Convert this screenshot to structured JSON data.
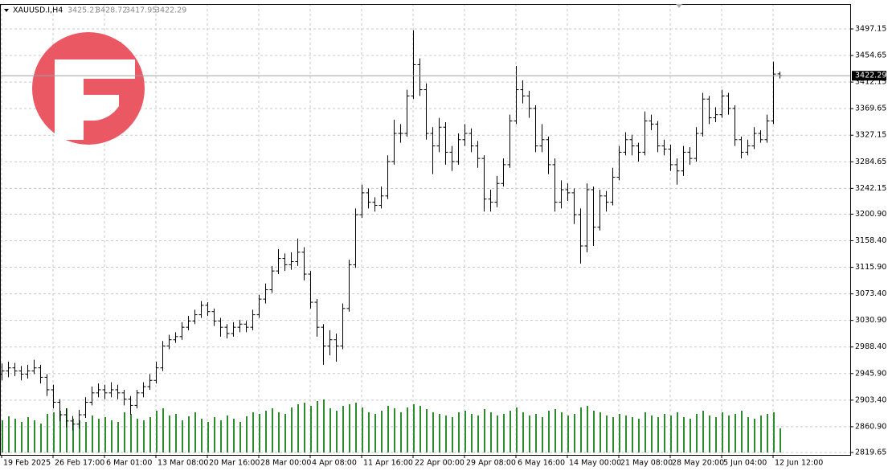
{
  "chart_data": {
    "type": "ohlc",
    "symbol": "XAUUSD.I,H4",
    "color": "#000000",
    "volume_color": "#2e8b2e",
    "grid": true,
    "open": [
      2945,
      2950,
      2955,
      2950,
      2945,
      2950,
      2955,
      2940,
      2920,
      2900,
      2880,
      2870,
      2865,
      2880,
      2900,
      2915,
      2920,
      2915,
      2920,
      2915,
      2905,
      2895,
      2915,
      2925,
      2935,
      2955,
      2990,
      3000,
      3005,
      3020,
      3030,
      3040,
      3055,
      3045,
      3030,
      3020,
      3010,
      3020,
      3025,
      3020,
      3040,
      3065,
      3080,
      3110,
      3130,
      3120,
      3125,
      3140,
      3105,
      3060,
      3020,
      2990,
      3000,
      2990,
      3050,
      3120,
      3200,
      3235,
      3220,
      3215,
      3230,
      3285,
      3330,
      3330,
      3390,
      3440,
      3400,
      3330,
      3310,
      3340,
      3300,
      3285,
      3320,
      3330,
      3310,
      3290,
      3225,
      3220,
      3250,
      3280,
      3350,
      3400,
      3390,
      3370,
      3310,
      3320,
      3280,
      3220,
      3240,
      3235,
      3200,
      3150,
      3240,
      3180,
      3230,
      3220,
      3260,
      3300,
      3320,
      3310,
      3300,
      3350,
      3345,
      3310,
      3305,
      3280,
      3270,
      3300,
      3290,
      3330,
      3385,
      3355,
      3360,
      3390,
      3370,
      3320,
      3300,
      3310,
      3330,
      3320,
      3350,
      3425.21
    ],
    "high": [
      2962,
      2965,
      2963,
      2958,
      2960,
      2968,
      2960,
      2945,
      2928,
      2905,
      2890,
      2878,
      2888,
      2908,
      2925,
      2930,
      2928,
      2932,
      2928,
      2920,
      2910,
      2920,
      2932,
      2945,
      2965,
      2998,
      3008,
      3012,
      3028,
      3038,
      3048,
      3062,
      3060,
      3050,
      3035,
      3025,
      3028,
      3032,
      3030,
      3048,
      3072,
      3090,
      3118,
      3145,
      3138,
      3140,
      3162,
      3148,
      3110,
      3065,
      3025,
      3015,
      3010,
      3058,
      3128,
      3210,
      3248,
      3242,
      3228,
      3245,
      3295,
      3352,
      3345,
      3400,
      3495,
      3450,
      3410,
      3340,
      3355,
      3348,
      3310,
      3330,
      3345,
      3338,
      3318,
      3295,
      3240,
      3262,
      3290,
      3360,
      3438,
      3415,
      3398,
      3375,
      3345,
      3325,
      3290,
      3255,
      3250,
      3242,
      3210,
      3250,
      3245,
      3240,
      3238,
      3275,
      3310,
      3332,
      3328,
      3315,
      3365,
      3360,
      3350,
      3320,
      3312,
      3290,
      3310,
      3308,
      3340,
      3395,
      3390,
      3372,
      3400,
      3395,
      3375,
      3325,
      3320,
      3340,
      3335,
      3360,
      3445,
      3428.72
    ],
    "low": [
      2935,
      2940,
      2942,
      2935,
      2938,
      2945,
      2930,
      2910,
      2890,
      2870,
      2860,
      2855,
      2858,
      2875,
      2895,
      2908,
      2905,
      2908,
      2905,
      2895,
      2880,
      2890,
      2908,
      2920,
      2930,
      2950,
      2985,
      2995,
      3000,
      3015,
      3025,
      3035,
      3038,
      3022,
      3005,
      3002,
      3005,
      3012,
      3012,
      3015,
      3035,
      3058,
      3075,
      3105,
      3110,
      3112,
      3118,
      3095,
      3050,
      3005,
      2960,
      2975,
      2965,
      2985,
      3045,
      3115,
      3195,
      3210,
      3205,
      3210,
      3225,
      3280,
      3315,
      3325,
      3385,
      3390,
      3320,
      3265,
      3300,
      3280,
      3270,
      3280,
      3310,
      3300,
      3275,
      3205,
      3205,
      3212,
      3245,
      3275,
      3345,
      3378,
      3355,
      3300,
      3300,
      3265,
      3205,
      3210,
      3222,
      3185,
      3122,
      3140,
      3150,
      3175,
      3205,
      3215,
      3255,
      3295,
      3295,
      3285,
      3295,
      3335,
      3300,
      3295,
      3270,
      3248,
      3262,
      3280,
      3285,
      3325,
      3345,
      3348,
      3355,
      3360,
      3310,
      3290,
      3295,
      3305,
      3315,
      3315,
      3345,
      3417.95
    ],
    "close": [
      2950,
      2955,
      2950,
      2945,
      2950,
      2955,
      2940,
      2920,
      2900,
      2880,
      2870,
      2865,
      2880,
      2900,
      2915,
      2920,
      2915,
      2920,
      2915,
      2905,
      2895,
      2915,
      2925,
      2935,
      2955,
      2990,
      3000,
      3005,
      3020,
      3030,
      3040,
      3055,
      3045,
      3030,
      3020,
      3010,
      3020,
      3025,
      3020,
      3040,
      3065,
      3080,
      3110,
      3130,
      3120,
      3125,
      3140,
      3105,
      3060,
      3020,
      2990,
      3000,
      2990,
      3050,
      3120,
      3200,
      3235,
      3220,
      3215,
      3230,
      3285,
      3330,
      3330,
      3390,
      3440,
      3400,
      3330,
      3310,
      3340,
      3300,
      3285,
      3320,
      3330,
      3310,
      3290,
      3225,
      3220,
      3250,
      3280,
      3350,
      3400,
      3390,
      3370,
      3310,
      3320,
      3280,
      3220,
      3240,
      3235,
      3200,
      3150,
      3240,
      3180,
      3230,
      3220,
      3260,
      3300,
      3320,
      3310,
      3300,
      3350,
      3345,
      3310,
      3305,
      3280,
      3270,
      3300,
      3290,
      3330,
      3385,
      3355,
      3360,
      3390,
      3370,
      3320,
      3300,
      3310,
      3330,
      3320,
      3350,
      3425,
      3422.29
    ],
    "volume": [
      40,
      45,
      42,
      38,
      44,
      40,
      36,
      48,
      50,
      52,
      55,
      42,
      40,
      38,
      46,
      42,
      44,
      40,
      38,
      50,
      48,
      42,
      40,
      44,
      52,
      55,
      46,
      48,
      40,
      45,
      50,
      42,
      38,
      44,
      40,
      46,
      42,
      38,
      45,
      50,
      48,
      52,
      55,
      50,
      48,
      56,
      60,
      62,
      58,
      64,
      66,
      55,
      52,
      58,
      60,
      62,
      56,
      50,
      48,
      52,
      58,
      55,
      50,
      56,
      60,
      58,
      54,
      50,
      48,
      46,
      44,
      50,
      52,
      48,
      46,
      54,
      50,
      46,
      48,
      52,
      56,
      50,
      46,
      48,
      44,
      52,
      54,
      50,
      46,
      48,
      56,
      58,
      52,
      50,
      46,
      44,
      48,
      46,
      44,
      42,
      50,
      46,
      44,
      48,
      46,
      50,
      44,
      42,
      48,
      52,
      46,
      44,
      50,
      46,
      48,
      52,
      44,
      42,
      46,
      48,
      50,
      30
    ],
    "volume_ylim": [
      0,
      100
    ],
    "xlim": [
      -0.25,
      132
    ],
    "xticks": [
      {
        "value": 0,
        "label": "19 Feb 2025"
      },
      {
        "value": 8,
        "label": "26 Feb 17:00"
      },
      {
        "value": 16,
        "label": "6 Mar 01:00"
      },
      {
        "value": 24,
        "label": "13 Mar 08:00"
      },
      {
        "value": 32,
        "label": "20 Mar 16:00"
      },
      {
        "value": 40,
        "label": "28 Mar 00:00"
      },
      {
        "value": 48,
        "label": "4 Apr 08:00"
      },
      {
        "value": 56,
        "label": "11 Apr 16:00"
      },
      {
        "value": 64,
        "label": "22 Apr 00:00"
      },
      {
        "value": 72,
        "label": "29 Apr 08:00"
      },
      {
        "value": 80,
        "label": "6 May 16:00"
      },
      {
        "value": 88,
        "label": "14 May 00:00"
      },
      {
        "value": 96,
        "label": "21 May 08:00"
      },
      {
        "value": 104,
        "label": "28 May 20:00"
      },
      {
        "value": 112,
        "label": "5 Jun 04:00"
      },
      {
        "value": 120,
        "label": "12 Jun 12:00"
      }
    ],
    "ylim": [
      2815.8,
      3537.0
    ],
    "yticks": [
      2819.65,
      {
        "value": 2860.9,
        "label": "2860.90"
      },
      {
        "value": 2903.4,
        "label": "2903.40"
      },
      {
        "value": 2945.9,
        "label": "2945.90"
      },
      {
        "value": 2988.4,
        "label": "2988.40"
      },
      {
        "value": 3030.9,
        "label": "3030.90"
      },
      {
        "value": 3073.4,
        "label": "3073.40"
      },
      {
        "value": 3115.9,
        "label": "3115.90"
      },
      {
        "value": 3158.4,
        "label": "3158.40"
      },
      {
        "value": 3200.9,
        "label": "3200.90"
      },
      3242.15,
      3284.65,
      3327.15,
      3369.65,
      3412.15,
      3454.65,
      3497.15
    ]
  }
}
